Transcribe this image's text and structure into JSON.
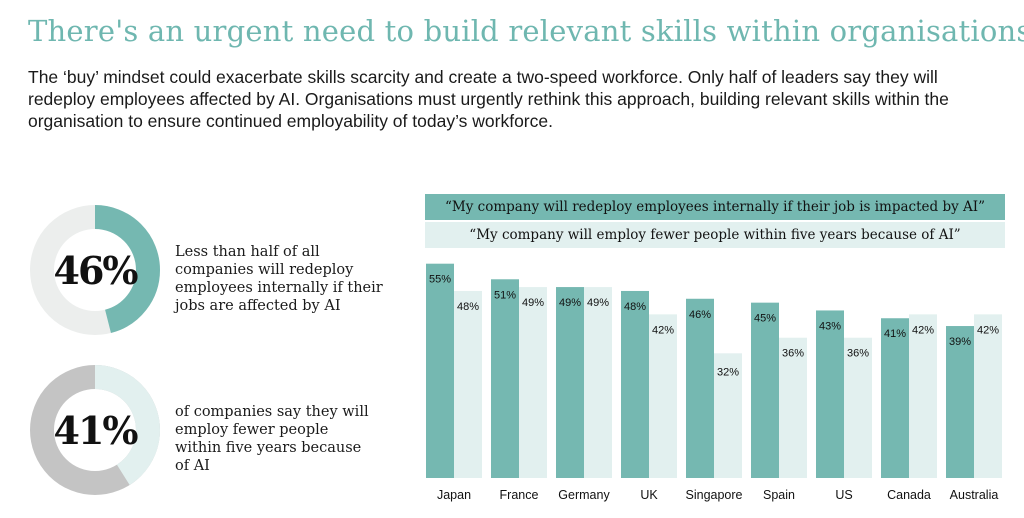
{
  "header": {
    "title": "There's an urgent need to build relevant skills within organisations",
    "intro": "The ‘buy’ mindset could exacerbate skills scarcity and create a two-speed workforce. Only half of leaders say they will redeploy employees affected by AI. Organisations must urgently rethink this approach, building relevant skills within the organisation to ensure continued employability of today’s workforce."
  },
  "stats": [
    {
      "value": 46,
      "label": "46%",
      "text": "Less than half of all companies will redeploy employees internally if their jobs are affected by AI"
    },
    {
      "value": 41,
      "label": "41%",
      "text": "of companies say they will employ fewer people within five years because of AI"
    }
  ],
  "colors": {
    "teal": "#75b8b1",
    "light_teal": "#e2f0ef",
    "light_grey": "#eceeed",
    "mid_grey": "#c4c4c4",
    "title_teal": "#6fb7b0"
  },
  "chart_data": {
    "type": "bar",
    "categories": [
      "Japan",
      "France",
      "Germany",
      "UK",
      "Singapore",
      "Spain",
      "US",
      "Canada",
      "Australia"
    ],
    "series": [
      {
        "name": "“My company will redeploy employees internally if their job is impacted by AI”",
        "values": [
          55,
          51,
          49,
          48,
          46,
          45,
          43,
          41,
          39
        ]
      },
      {
        "name": "“My company will employ fewer people within five years because of AI”",
        "values": [
          48,
          49,
          49,
          42,
          32,
          36,
          36,
          42,
          42
        ]
      }
    ],
    "value_labels": [
      [
        "55%",
        "51%",
        "49%",
        "48%",
        "46%",
        "45%",
        "43%",
        "41%",
        "39%"
      ],
      [
        "48%",
        "49%",
        "49%",
        "42%",
        "32%",
        "36%",
        "36%",
        "42%",
        "42%"
      ]
    ],
    "ylim": [
      0,
      58
    ],
    "legend": "top",
    "grid": false
  }
}
